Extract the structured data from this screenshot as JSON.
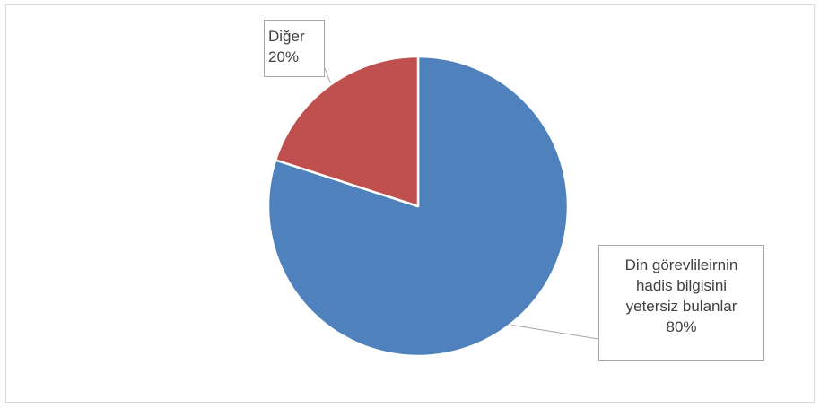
{
  "chart_data": {
    "type": "pie",
    "slices": [
      {
        "label": "Din görevlileirnin hadis bilgisini yetersiz bulanlar",
        "value": 80,
        "percent_label": "80%",
        "color": "#4f81bd"
      },
      {
        "label": "Diğer",
        "value": 20,
        "percent_label": "20%",
        "color": "#c0504d"
      }
    ]
  },
  "callouts": [
    {
      "lines": [
        "Din görevlileirnin",
        "hadis bilgisini",
        "yetersiz bulanlar",
        "80%"
      ]
    },
    {
      "lines": [
        "Diğer",
        "20%"
      ]
    }
  ]
}
